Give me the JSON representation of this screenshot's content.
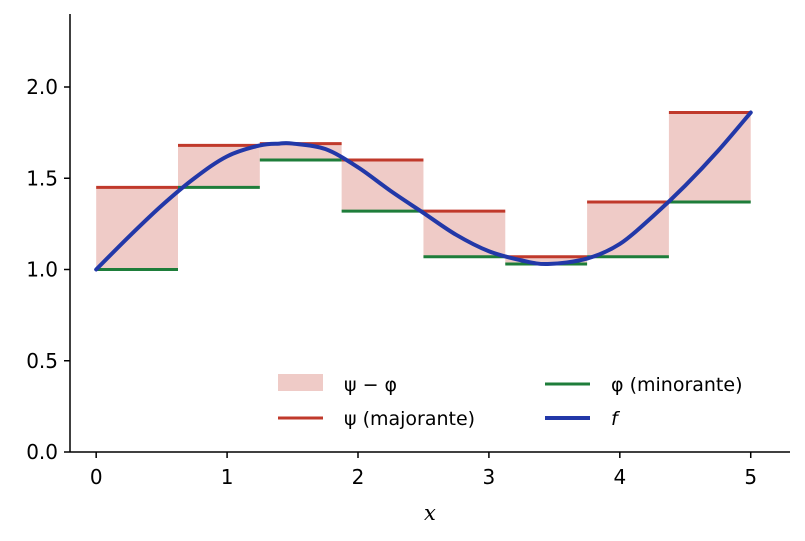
{
  "chart_data": {
    "type": "line",
    "title": "",
    "xlabel": "x",
    "ylabel": "",
    "xlim": [
      -0.2,
      5.3
    ],
    "ylim": [
      0,
      2.4
    ],
    "xticks": [
      0,
      1,
      2,
      3,
      4,
      5
    ],
    "yticks": [
      0.0,
      0.5,
      1.0,
      1.5,
      2.0
    ],
    "xtick_labels": [
      "0",
      "1",
      "2",
      "3",
      "4",
      "5"
    ],
    "ytick_labels": [
      "0.0",
      "0.5",
      "1.0",
      "1.5",
      "2.0"
    ],
    "grid": false,
    "legend_position": "lower-right",
    "intervals": [
      {
        "x0": 0.0,
        "x1": 0.625,
        "psi": 1.45,
        "phi": 1.0
      },
      {
        "x0": 0.625,
        "x1": 1.25,
        "psi": 1.68,
        "phi": 1.45
      },
      {
        "x0": 1.25,
        "x1": 1.875,
        "psi": 1.69,
        "phi": 1.6
      },
      {
        "x0": 1.875,
        "x1": 2.5,
        "psi": 1.6,
        "phi": 1.32
      },
      {
        "x0": 2.5,
        "x1": 3.125,
        "psi": 1.32,
        "phi": 1.07
      },
      {
        "x0": 3.125,
        "x1": 3.75,
        "psi": 1.07,
        "phi": 1.03
      },
      {
        "x0": 3.75,
        "x1": 4.375,
        "psi": 1.37,
        "phi": 1.07
      },
      {
        "x0": 4.375,
        "x1": 5.0,
        "psi": 1.86,
        "phi": 1.37
      }
    ],
    "f_curve": {
      "x": [
        0.0,
        0.25,
        0.5,
        0.75,
        1.0,
        1.25,
        1.4,
        1.5,
        1.75,
        2.0,
        2.25,
        2.5,
        2.75,
        3.0,
        3.25,
        3.45,
        3.75,
        4.0,
        4.25,
        4.5,
        4.75,
        5.0
      ],
      "y": [
        1.0,
        1.18,
        1.35,
        1.5,
        1.62,
        1.68,
        1.69,
        1.69,
        1.66,
        1.56,
        1.43,
        1.31,
        1.19,
        1.1,
        1.05,
        1.03,
        1.06,
        1.14,
        1.29,
        1.46,
        1.65,
        1.86
      ]
    },
    "legend": [
      {
        "key": "diff",
        "label": "ψ − φ"
      },
      {
        "key": "psi",
        "label": "ψ (majorante)"
      },
      {
        "key": "phi",
        "label": "φ (minorante)"
      },
      {
        "key": "f",
        "label": "f"
      }
    ],
    "colors": {
      "fill": "#efcbc7",
      "psi": "#c0392b",
      "phi": "#1e7d3a",
      "f": "#2238a8",
      "axis": "#000000"
    }
  }
}
